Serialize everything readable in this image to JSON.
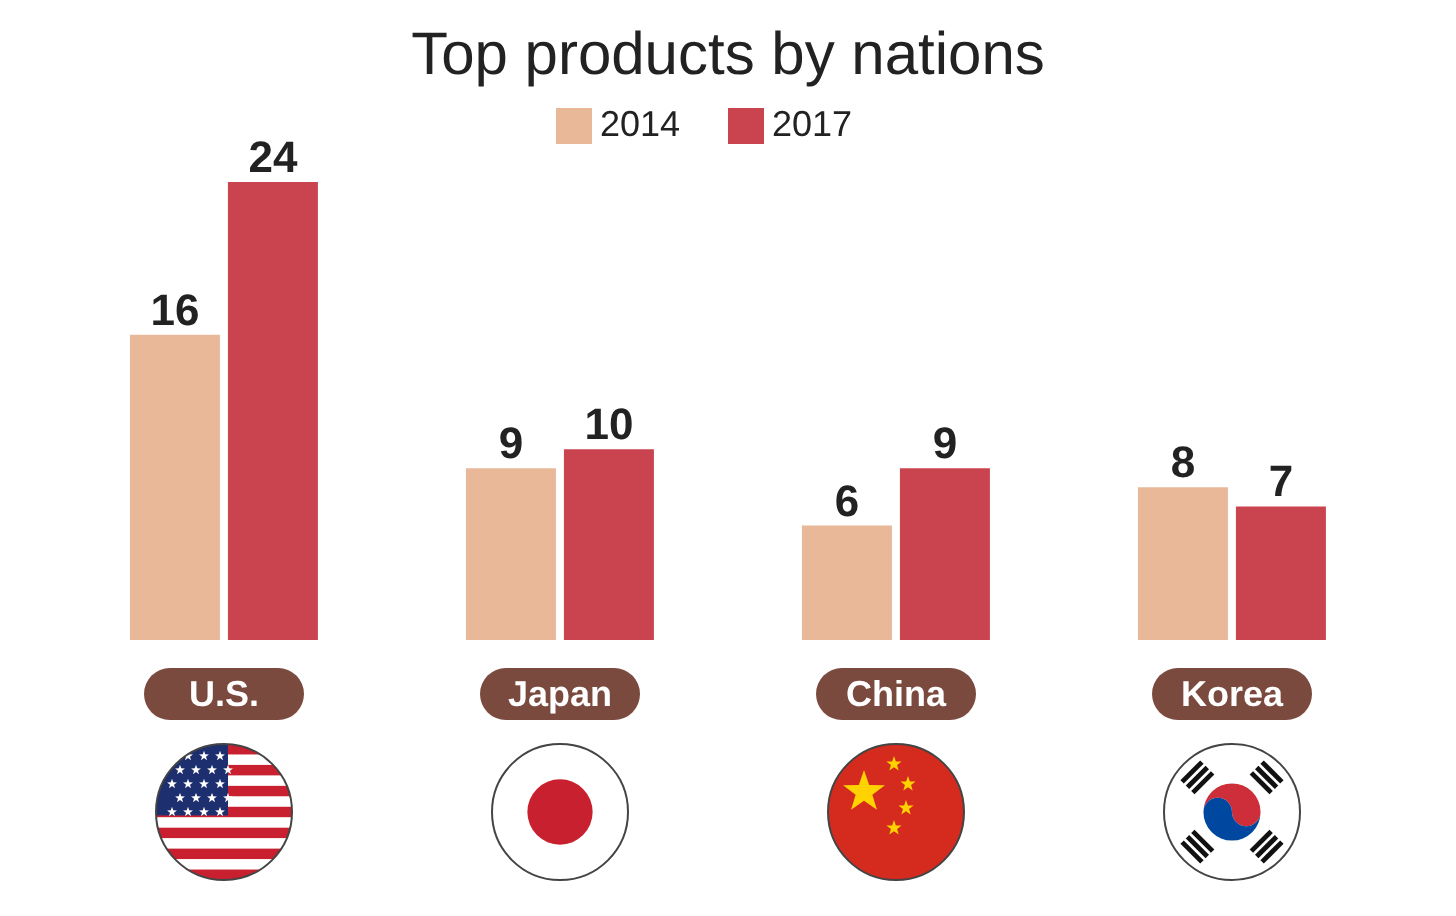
{
  "chart_data": {
    "type": "bar",
    "title": "Top products by nations",
    "categories": [
      "U.S.",
      "Japan",
      "China",
      "Korea"
    ],
    "series": [
      {
        "name": "2014",
        "color": "#e8b898",
        "values": [
          16,
          9,
          6,
          8
        ]
      },
      {
        "name": "2017",
        "color": "#c9444f",
        "values": [
          24,
          10,
          9,
          7
        ]
      }
    ],
    "data_labels": true,
    "legend": "top"
  }
}
